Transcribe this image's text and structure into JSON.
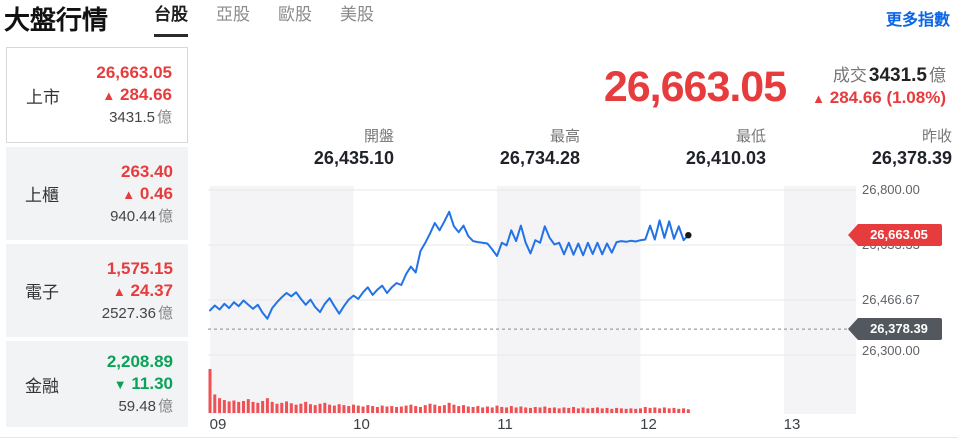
{
  "header": {
    "title": "大盤行情",
    "tabs": [
      {
        "label": "台股",
        "active": true
      },
      {
        "label": "亞股",
        "active": false
      },
      {
        "label": "歐股",
        "active": false
      },
      {
        "label": "美股",
        "active": false
      }
    ],
    "more_link": "更多指數"
  },
  "sidebar": {
    "items": [
      {
        "name": "上市",
        "price": "26,663.05",
        "arrow": "▲",
        "change": "284.66",
        "direction": "up",
        "volume": "3431.5",
        "volume_unit": "億",
        "active": true
      },
      {
        "name": "上櫃",
        "price": "263.40",
        "arrow": "▲",
        "change": "0.46",
        "direction": "up",
        "volume": "940.44",
        "volume_unit": "億",
        "active": false
      },
      {
        "name": "電子",
        "price": "1,575.15",
        "arrow": "▲",
        "change": "24.37",
        "direction": "up",
        "volume": "2527.36",
        "volume_unit": "億",
        "active": false
      },
      {
        "name": "金融",
        "price": "2,208.89",
        "arrow": "▼",
        "change": "11.30",
        "direction": "down",
        "volume": "59.48",
        "volume_unit": "億",
        "active": false
      }
    ]
  },
  "quote": {
    "price": "26,663.05",
    "turnover_label": "成交",
    "turnover_value": "3431.5",
    "turnover_unit": "億",
    "arrow": "▲",
    "change_text": "284.66 (1.08%)",
    "direction": "up"
  },
  "ohlc": [
    {
      "label": "開盤",
      "value": "26,435.10"
    },
    {
      "label": "最高",
      "value": "26,734.28"
    },
    {
      "label": "最低",
      "value": "26,410.03"
    },
    {
      "label": "昨收",
      "value": "26,378.39"
    }
  ],
  "colors": {
    "up": "#e73c3e",
    "down": "#0aa258",
    "line": "#2273e8",
    "link": "#0a65e8",
    "volume_bar": "#ef5054",
    "band": "#f4f4f6",
    "gridline": "#e7e7e9",
    "prev_close_badge": "#53585e",
    "dashed_line": "#9aa0a6"
  },
  "chart_data": {
    "type": "line",
    "x_ticks": [
      "09",
      "10",
      "11",
      "12",
      "13"
    ],
    "session": [
      "09:00",
      "13:30"
    ],
    "minutes_per_point": 2,
    "y_gridline_values": [
      26800.0,
      26633.33,
      26466.67,
      26300.0
    ],
    "y_gridline_labels": [
      "26,800.00",
      "26,633.33",
      "26,466.67",
      "26,300.00"
    ],
    "prev_close": 26378.39,
    "prev_close_label": "26,378.39",
    "last": 26663.05,
    "last_label": "26,663.05",
    "open": 26435.1,
    "high": 26734.28,
    "low": 26410.03,
    "price": [
      26435,
      26450,
      26438,
      26455,
      26442,
      26460,
      26448,
      26465,
      26452,
      26440,
      26452,
      26428,
      26410,
      26442,
      26460,
      26475,
      26488,
      26478,
      26490,
      26470,
      26452,
      26468,
      26445,
      26430,
      26455,
      26472,
      26448,
      26425,
      26448,
      26468,
      26480,
      26470,
      26490,
      26505,
      26482,
      26498,
      26510,
      26488,
      26505,
      26518,
      26512,
      26545,
      26568,
      26550,
      26615,
      26640,
      26668,
      26700,
      26678,
      26705,
      26734,
      26690,
      26672,
      26692,
      26660,
      26645,
      26642,
      26640,
      26638,
      26620,
      26600,
      26640,
      26632,
      26678,
      26645,
      26692,
      26640,
      26608,
      26648,
      26640,
      26690,
      26655,
      26635,
      26640,
      26605,
      26640,
      26604,
      26638,
      26602,
      26640,
      26606,
      26640,
      26605,
      26638,
      26610,
      26642,
      26645,
      26643,
      26646,
      26644,
      26648,
      26650,
      26692,
      26650,
      26708,
      26655,
      26705,
      26652,
      26690,
      26648,
      26663.05
    ],
    "volume": [
      95,
      40,
      32,
      28,
      25,
      27,
      24,
      26,
      30,
      24,
      22,
      26,
      32,
      24,
      20,
      22,
      25,
      21,
      18,
      20,
      24,
      19,
      17,
      20,
      22,
      18,
      16,
      19,
      17,
      15,
      18,
      16,
      14,
      17,
      15,
      13,
      16,
      14,
      15,
      13,
      14,
      16,
      18,
      15,
      13,
      17,
      20,
      18,
      15,
      17,
      22,
      18,
      15,
      17,
      14,
      13,
      15,
      12,
      14,
      12,
      16,
      13,
      12,
      15,
      12,
      14,
      12,
      11,
      13,
      12,
      14,
      11,
      12,
      10,
      12,
      11,
      13,
      10,
      12,
      10,
      11,
      12,
      10,
      11,
      9,
      11,
      10,
      9,
      10,
      9,
      10,
      13,
      11,
      12,
      10,
      12,
      10,
      11,
      9,
      10,
      8
    ]
  }
}
